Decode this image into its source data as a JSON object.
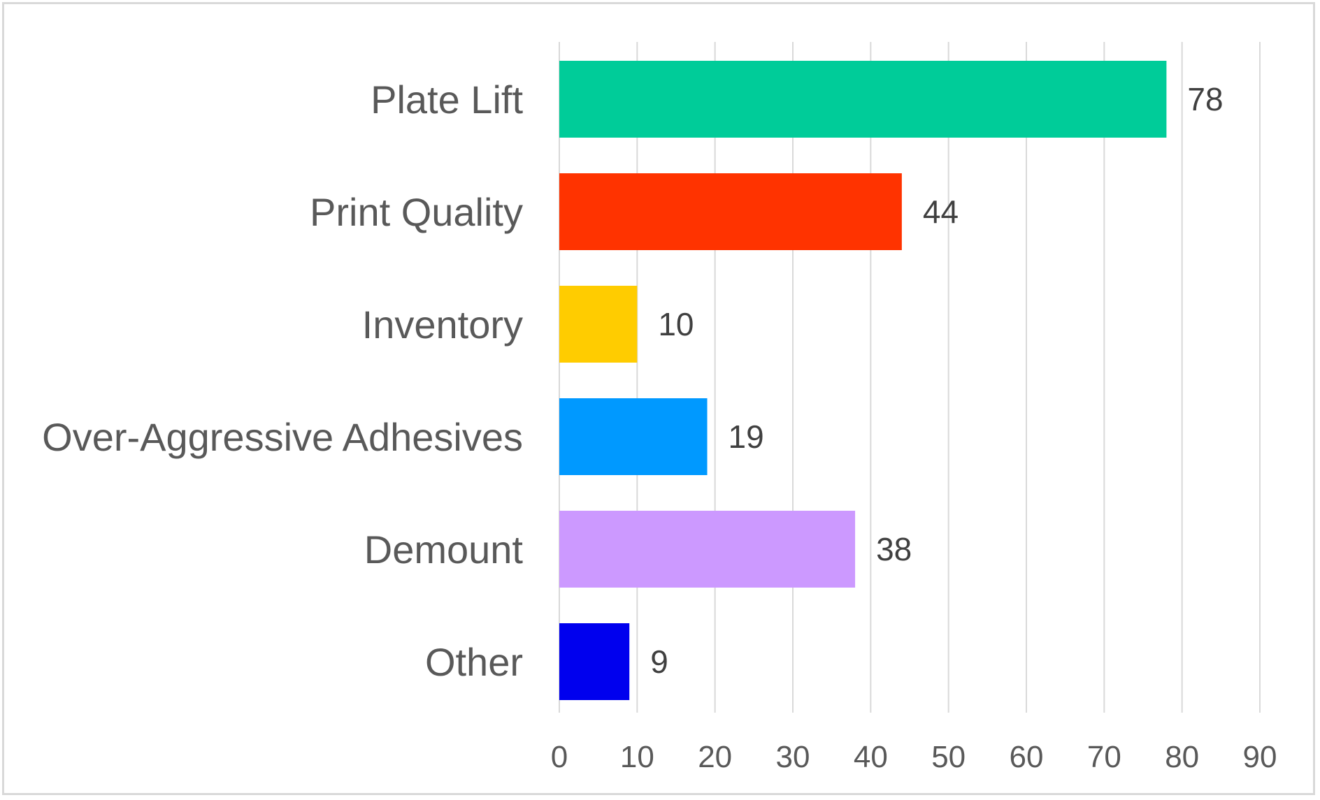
{
  "chart_data": {
    "type": "bar",
    "orientation": "horizontal",
    "categories": [
      "Plate Lift",
      "Print Quality",
      "Inventory",
      "Over-Aggressive Adhesives",
      "Demount",
      "Other"
    ],
    "values": [
      78,
      44,
      10,
      19,
      38,
      9
    ],
    "colors": [
      "#00CC99",
      "#FF3300",
      "#FFCC00",
      "#0099FF",
      "#CC99FF",
      "#0000EE"
    ],
    "xlim": [
      0,
      90
    ],
    "xticks": [
      0,
      10,
      20,
      30,
      40,
      50,
      60,
      70,
      80,
      90
    ],
    "grid": true,
    "title": "",
    "xlabel": "",
    "ylabel": ""
  }
}
